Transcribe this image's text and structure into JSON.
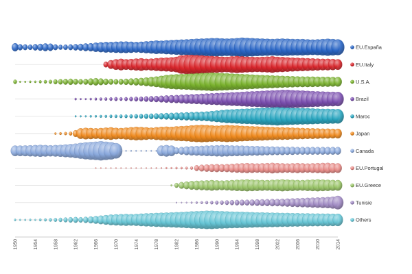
{
  "chart_data": {
    "type": "scatter",
    "title": "",
    "xlabel": "",
    "ylabel": "",
    "xlim": [
      1950,
      2014
    ],
    "x_ticks": [
      "1950",
      "1954",
      "1958",
      "1962",
      "1966",
      "1970",
      "1974",
      "1978",
      "1982",
      "1986",
      "1990",
      "1994",
      "1998",
      "2002",
      "2006",
      "2010",
      "2014"
    ],
    "legend_position": "right",
    "grid": "horizontal",
    "size_note_units": "relative bubble size 0-1",
    "series": [
      {
        "name": "EU.España",
        "color": "#2a66c6",
        "start": 1950,
        "step": 1,
        "sizes": [
          0.42,
          0.32,
          0.3,
          0.28,
          0.33,
          0.36,
          0.4,
          0.38,
          0.3,
          0.26,
          0.28,
          0.3,
          0.33,
          0.36,
          0.4,
          0.42,
          0.48,
          0.52,
          0.55,
          0.55,
          0.58,
          0.6,
          0.6,
          0.58,
          0.55,
          0.58,
          0.62,
          0.65,
          0.7,
          0.68,
          0.72,
          0.75,
          0.78,
          0.8,
          0.82,
          0.85,
          0.88,
          0.9,
          0.92,
          0.95,
          0.95,
          0.92,
          0.9,
          0.92,
          0.95,
          1.0,
          0.97,
          0.95,
          0.92,
          0.9,
          0.88,
          0.86,
          0.88,
          0.9,
          0.88,
          0.86,
          0.85,
          0.85,
          0.82,
          0.8,
          0.82,
          0.85,
          0.88,
          0.85,
          0.82
        ]
      },
      {
        "name": "EU.Italy",
        "color": "#d9262c",
        "start": 1968,
        "step": 1,
        "sizes": [
          0.3,
          0.45,
          0.55,
          0.6,
          0.55,
          0.58,
          0.62,
          0.65,
          0.6,
          0.62,
          0.66,
          0.7,
          0.72,
          0.75,
          0.8,
          0.95,
          1.0,
          1.0,
          0.98,
          0.95,
          0.9,
          0.88,
          0.85,
          0.82,
          0.8,
          0.85,
          0.88,
          0.85,
          0.82,
          0.8,
          0.78,
          0.8,
          0.82,
          0.85,
          0.8,
          0.78,
          0.75,
          0.72,
          0.7,
          0.68,
          0.66,
          0.64,
          0.62,
          0.6,
          0.6,
          0.58,
          0.55
        ]
      },
      {
        "name": "U.S.A.",
        "color": "#7ab22e",
        "start": 1950,
        "step": 1,
        "sizes": [
          0.22,
          0.1,
          0.1,
          0.12,
          0.12,
          0.15,
          0.18,
          0.2,
          0.25,
          0.28,
          0.3,
          0.32,
          0.3,
          0.28,
          0.3,
          0.35,
          0.38,
          0.35,
          0.32,
          0.3,
          0.28,
          0.3,
          0.32,
          0.35,
          0.38,
          0.4,
          0.45,
          0.5,
          0.55,
          0.62,
          0.7,
          0.75,
          0.78,
          0.8,
          0.82,
          0.85,
          0.88,
          0.9,
          0.92,
          0.95,
          0.92,
          0.9,
          0.88,
          0.85,
          0.82,
          0.8,
          0.78,
          0.75,
          0.72,
          0.7,
          0.68,
          0.66,
          0.64,
          0.62,
          0.6,
          0.58,
          0.56,
          0.55,
          0.55,
          0.54,
          0.53,
          0.52,
          0.52,
          0.5,
          0.5
        ]
      },
      {
        "name": "Brazil",
        "color": "#7b4fb0",
        "start": 1962,
        "step": 1,
        "sizes": [
          0.12,
          0.1,
          0.1,
          0.12,
          0.14,
          0.15,
          0.16,
          0.18,
          0.2,
          0.18,
          0.2,
          0.22,
          0.24,
          0.25,
          0.28,
          0.3,
          0.32,
          0.35,
          0.38,
          0.4,
          0.42,
          0.45,
          0.48,
          0.5,
          0.52,
          0.55,
          0.58,
          0.6,
          0.62,
          0.65,
          0.68,
          0.7,
          0.72,
          0.75,
          0.78,
          0.8,
          0.82,
          0.85,
          0.88,
          0.9,
          0.92,
          0.95,
          0.95,
          0.92,
          0.9,
          0.88,
          0.85,
          0.82,
          0.8,
          0.78,
          0.76,
          0.75,
          0.74
        ]
      },
      {
        "name": "Maroc",
        "color": "#2aa6c0",
        "start": 1962,
        "step": 1,
        "sizes": [
          0.1,
          0.1,
          0.1,
          0.12,
          0.12,
          0.14,
          0.14,
          0.16,
          0.16,
          0.18,
          0.18,
          0.2,
          0.22,
          0.24,
          0.26,
          0.28,
          0.3,
          0.32,
          0.34,
          0.36,
          0.38,
          0.4,
          0.42,
          0.44,
          0.46,
          0.48,
          0.5,
          0.55,
          0.6,
          0.65,
          0.7,
          0.72,
          0.75,
          0.78,
          0.8,
          0.82,
          0.85,
          0.88,
          0.9,
          0.92,
          0.95,
          0.92,
          0.9,
          0.88,
          0.86,
          0.85,
          0.84,
          0.82,
          0.8,
          0.78,
          0.78,
          0.76,
          0.75
        ]
      },
      {
        "name": "Japan",
        "color": "#f08a1e",
        "start": 1958,
        "step": 1,
        "sizes": [
          0.12,
          0.14,
          0.16,
          0.2,
          0.35,
          0.55,
          0.6,
          0.58,
          0.55,
          0.58,
          0.62,
          0.65,
          0.6,
          0.58,
          0.62,
          0.66,
          0.7,
          0.68,
          0.65,
          0.62,
          0.66,
          0.7,
          0.72,
          0.7,
          0.75,
          0.78,
          0.8,
          0.85,
          0.88,
          0.9,
          0.88,
          0.85,
          0.82,
          0.85,
          0.88,
          0.86,
          0.84,
          0.8,
          0.78,
          0.76,
          0.74,
          0.72,
          0.7,
          0.68,
          0.66,
          0.65,
          0.64,
          0.62,
          0.6,
          0.58,
          0.56,
          0.55,
          0.54,
          0.52,
          0.52,
          0.5,
          0.5
        ]
      },
      {
        "name": "Canada",
        "color": "#8aa9dd",
        "start": 1950,
        "step": 1,
        "sizes": [
          0.55,
          0.55,
          0.56,
          0.58,
          0.6,
          0.62,
          0.6,
          0.58,
          0.6,
          0.62,
          0.66,
          0.7,
          0.75,
          0.82,
          0.88,
          0.92,
          0.95,
          1.0,
          0.95,
          0.9,
          0.8,
          0.08,
          0.08,
          0.08,
          0.08,
          0.08,
          0.08,
          0.08,
          0.08,
          0.55,
          0.6,
          0.55,
          0.35,
          0.4,
          0.45,
          0.48,
          0.5,
          0.52,
          0.55,
          0.56,
          0.58,
          0.6,
          0.58,
          0.56,
          0.55,
          0.54,
          0.52,
          0.5,
          0.5,
          0.48,
          0.46,
          0.45,
          0.44,
          0.44,
          0.42,
          0.42,
          0.4,
          0.4,
          0.4,
          0.4,
          0.4,
          0.4,
          0.4,
          0.4,
          0.4
        ]
      },
      {
        "name": "EU.Portugal",
        "color": "#e88a86",
        "start": 1966,
        "step": 1,
        "sizes": [
          0.05,
          0.05,
          0.05,
          0.05,
          0.05,
          0.05,
          0.05,
          0.05,
          0.06,
          0.06,
          0.07,
          0.07,
          0.08,
          0.08,
          0.1,
          0.1,
          0.12,
          0.12,
          0.14,
          0.16,
          0.3,
          0.35,
          0.38,
          0.4,
          0.42,
          0.4,
          0.42,
          0.45,
          0.48,
          0.5,
          0.52,
          0.5,
          0.48,
          0.5,
          0.52,
          0.55,
          0.52,
          0.5,
          0.48,
          0.5,
          0.52,
          0.5,
          0.48,
          0.5,
          0.52,
          0.54,
          0.55,
          0.52,
          0.5
        ]
      },
      {
        "name": "EU.Greece",
        "color": "#98c466",
        "start": 1981,
        "step": 1,
        "sizes": [
          0.1,
          0.25,
          0.35,
          0.4,
          0.45,
          0.48,
          0.5,
          0.52,
          0.55,
          0.52,
          0.5,
          0.52,
          0.55,
          0.58,
          0.6,
          0.62,
          0.6,
          0.58,
          0.56,
          0.55,
          0.58,
          0.6,
          0.62,
          0.6,
          0.58,
          0.56,
          0.55,
          0.58,
          0.6,
          0.62,
          0.6,
          0.58,
          0.56,
          0.55
        ]
      },
      {
        "name": "Tunisie",
        "color": "#a08ac4",
        "start": 1982,
        "step": 1,
        "sizes": [
          0.05,
          0.06,
          0.08,
          0.1,
          0.12,
          0.14,
          0.16,
          0.18,
          0.2,
          0.22,
          0.24,
          0.26,
          0.28,
          0.3,
          0.3,
          0.32,
          0.34,
          0.35,
          0.36,
          0.38,
          0.38,
          0.4,
          0.42,
          0.44,
          0.46,
          0.48,
          0.5,
          0.52,
          0.54,
          0.56,
          0.58,
          0.62,
          0.7
        ]
      },
      {
        "name": "Others",
        "color": "#66c6d6",
        "start": 1950,
        "step": 1,
        "sizes": [
          0.12,
          0.1,
          0.1,
          0.12,
          0.1,
          0.14,
          0.15,
          0.18,
          0.2,
          0.22,
          0.25,
          0.28,
          0.3,
          0.28,
          0.32,
          0.36,
          0.4,
          0.45,
          0.5,
          0.55,
          0.58,
          0.6,
          0.62,
          0.6,
          0.62,
          0.65,
          0.68,
          0.7,
          0.72,
          0.74,
          0.76,
          0.78,
          0.8,
          0.82,
          0.85,
          0.88,
          0.9,
          0.92,
          0.95,
          0.95,
          0.92,
          0.9,
          0.88,
          0.86,
          0.85,
          0.84,
          0.82,
          0.8,
          0.78,
          0.78,
          0.76,
          0.75,
          0.74,
          0.72,
          0.72,
          0.7,
          0.7,
          0.68,
          0.68,
          0.66,
          0.66,
          0.65,
          0.65,
          0.64,
          0.64
        ]
      }
    ]
  }
}
